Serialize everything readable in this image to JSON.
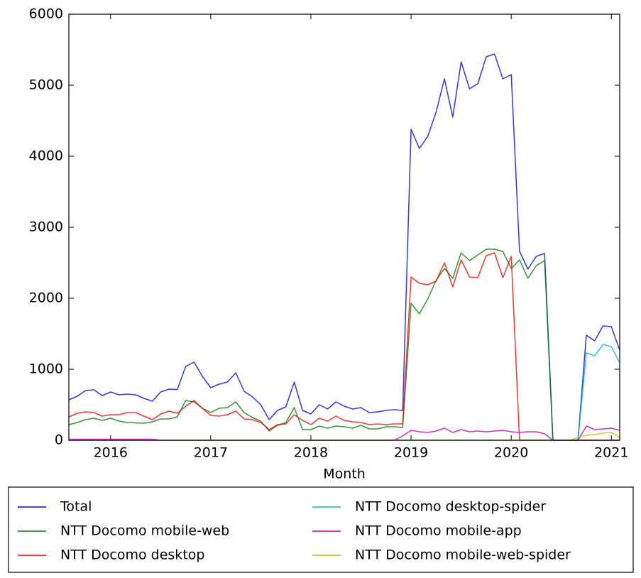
{
  "chart_data": {
    "type": "line",
    "xlabel": "Month",
    "x": [
      "2015-08",
      "2015-09",
      "2015-10",
      "2015-11",
      "2015-12",
      "2016-01",
      "2016-02",
      "2016-03",
      "2016-04",
      "2016-05",
      "2016-06",
      "2016-07",
      "2016-08",
      "2016-09",
      "2016-10",
      "2016-11",
      "2016-12",
      "2017-01",
      "2017-02",
      "2017-03",
      "2017-04",
      "2017-05",
      "2017-06",
      "2017-07",
      "2017-08",
      "2017-09",
      "2017-10",
      "2017-11",
      "2017-12",
      "2018-01",
      "2018-02",
      "2018-03",
      "2018-04",
      "2018-05",
      "2018-06",
      "2018-07",
      "2018-08",
      "2018-09",
      "2018-10",
      "2018-11",
      "2018-12",
      "2019-01",
      "2019-02",
      "2019-03",
      "2019-04",
      "2019-05",
      "2019-06",
      "2019-07",
      "2019-08",
      "2019-09",
      "2019-10",
      "2019-11",
      "2019-12",
      "2020-01",
      "2020-02",
      "2020-03",
      "2020-04",
      "2020-05",
      "2020-06",
      "2020-07",
      "2020-08",
      "2020-09",
      "2020-10",
      "2020-11",
      "2020-12",
      "2021-01",
      "2021-02"
    ],
    "xlim": [
      "2015-08",
      "2021-02"
    ],
    "xticks": [
      {
        "value": "2016-01",
        "label": "2016"
      },
      {
        "value": "2017-01",
        "label": "2017"
      },
      {
        "value": "2018-01",
        "label": "2018"
      },
      {
        "value": "2019-01",
        "label": "2019"
      },
      {
        "value": "2020-01",
        "label": "2020"
      },
      {
        "value": "2021-01",
        "label": "2021"
      }
    ],
    "ylim": [
      0,
      6000
    ],
    "yticks": [
      0,
      1000,
      2000,
      3000,
      4000,
      5000,
      6000
    ],
    "legend": "below",
    "series": [
      {
        "name": "Total",
        "color": "#0000ff",
        "values": [
          570,
          620,
          700,
          710,
          630,
          680,
          640,
          650,
          640,
          590,
          550,
          680,
          720,
          715,
          1040,
          1100,
          900,
          740,
          790,
          820,
          950,
          690,
          610,
          500,
          290,
          420,
          470,
          820,
          420,
          370,
          500,
          440,
          540,
          480,
          440,
          460,
          390,
          400,
          420,
          430,
          420,
          4380,
          4110,
          4280,
          4620,
          5090,
          4550,
          5330,
          4950,
          5020,
          5400,
          5440,
          5090,
          5150,
          2660,
          2410,
          2590,
          2630,
          0,
          0,
          0,
          0,
          1480,
          1400,
          1610,
          1600,
          1270
        ]
      },
      {
        "name": "NTT Docomo mobile-web",
        "color": "#008000",
        "values": [
          220,
          250,
          290,
          310,
          280,
          310,
          270,
          250,
          245,
          240,
          260,
          300,
          300,
          330,
          560,
          540,
          450,
          390,
          450,
          460,
          540,
          390,
          320,
          270,
          130,
          210,
          250,
          460,
          150,
          150,
          200,
          170,
          200,
          190,
          170,
          210,
          160,
          160,
          190,
          190,
          180,
          1930,
          1780,
          1990,
          2250,
          2420,
          2280,
          2640,
          2530,
          2610,
          2690,
          2690,
          2660,
          2420,
          2540,
          2280,
          2460,
          2530,
          0,
          0,
          0,
          0,
          0,
          0,
          0,
          0,
          0
        ]
      },
      {
        "name": "NTT Docomo desktop",
        "color": "#ff0000",
        "values": [
          330,
          380,
          400,
          390,
          340,
          360,
          360,
          390,
          390,
          340,
          290,
          370,
          410,
          380,
          480,
          560,
          450,
          350,
          340,
          360,
          410,
          300,
          290,
          250,
          150,
          220,
          230,
          360,
          280,
          220,
          310,
          270,
          340,
          280,
          260,
          250,
          220,
          230,
          220,
          230,
          230,
          2300,
          2210,
          2190,
          2240,
          2500,
          2160,
          2540,
          2300,
          2290,
          2600,
          2640,
          2290,
          2590,
          0,
          0,
          0,
          0,
          0,
          0,
          0,
          0,
          0,
          0,
          0,
          0,
          0
        ]
      },
      {
        "name": "NTT Docomo desktop-spider",
        "color": "#00bfbf",
        "values": [
          0,
          0,
          0,
          0,
          0,
          0,
          0,
          0,
          0,
          0,
          0,
          0,
          0,
          0,
          0,
          0,
          0,
          0,
          0,
          0,
          0,
          0,
          0,
          0,
          0,
          0,
          0,
          0,
          0,
          0,
          0,
          0,
          0,
          0,
          0,
          0,
          0,
          0,
          0,
          0,
          0,
          0,
          0,
          0,
          0,
          0,
          0,
          0,
          0,
          0,
          0,
          0,
          0,
          0,
          0,
          0,
          0,
          0,
          0,
          0,
          0,
          0,
          1230,
          1190,
          1350,
          1320,
          1090
        ]
      },
      {
        "name": "NTT Docomo mobile-app",
        "color": "#bf00bf",
        "values": [
          15,
          15,
          15,
          15,
          15,
          15,
          15,
          15,
          15,
          15,
          15,
          0,
          0,
          0,
          0,
          0,
          0,
          0,
          0,
          0,
          0,
          0,
          0,
          0,
          0,
          0,
          0,
          0,
          0,
          0,
          0,
          0,
          0,
          0,
          0,
          0,
          0,
          0,
          0,
          0,
          60,
          140,
          120,
          110,
          130,
          170,
          110,
          150,
          120,
          130,
          120,
          130,
          140,
          120,
          110,
          120,
          120,
          90,
          0,
          0,
          0,
          0,
          200,
          150,
          160,
          170,
          140
        ]
      },
      {
        "name": "NTT Docomo mobile-web-spider",
        "color": "#bfbf00",
        "values": [
          0,
          0,
          0,
          0,
          0,
          0,
          0,
          0,
          0,
          0,
          0,
          0,
          0,
          0,
          0,
          0,
          0,
          0,
          0,
          0,
          0,
          0,
          0,
          0,
          0,
          0,
          0,
          0,
          0,
          0,
          0,
          0,
          0,
          0,
          0,
          0,
          0,
          0,
          0,
          0,
          0,
          0,
          0,
          0,
          0,
          0,
          0,
          0,
          0,
          0,
          0,
          0,
          0,
          0,
          0,
          0,
          0,
          0,
          0,
          0,
          0,
          40,
          70,
          80,
          100,
          110,
          40
        ]
      }
    ]
  }
}
